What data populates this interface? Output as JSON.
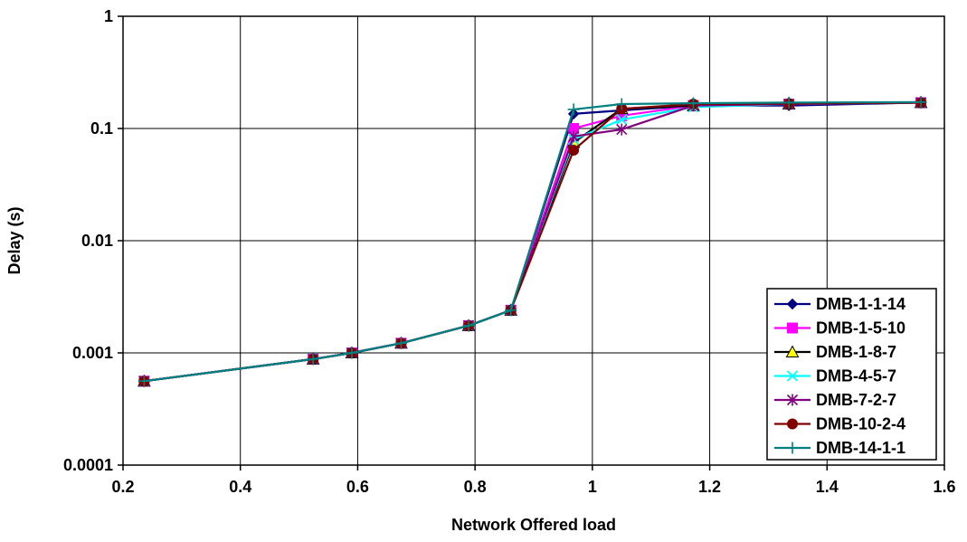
{
  "chart_data": {
    "type": "line",
    "xlabel": "Network Offered load",
    "ylabel": "Delay (s)",
    "xlim": [
      0.2,
      1.6
    ],
    "ylim": [
      0.0001,
      1
    ],
    "yscale": "log",
    "grid": true,
    "legend_position": "bottom-right",
    "x_ticks": [
      "0.2",
      "0.4",
      "0.6",
      "0.8",
      "1",
      "1.2",
      "1.4",
      "1.6"
    ],
    "y_ticks": [
      "0.0001",
      "0.001",
      "0.01",
      "0.1",
      "1"
    ],
    "x": [
      0.236,
      0.524,
      0.59,
      0.674,
      0.789,
      0.861,
      0.968,
      1.05,
      1.172,
      1.335,
      1.56
    ],
    "series": [
      {
        "name": "DMB-1-1-14",
        "color": "#000080",
        "marker": "diamond",
        "values": [
          0.00056,
          0.00088,
          0.001,
          0.00122,
          0.00175,
          0.0024,
          0.135,
          0.145,
          0.16,
          0.16,
          0.17
        ]
      },
      {
        "name": "DMB-1-5-10",
        "color": "#ff00ff",
        "marker": "square",
        "values": [
          0.00056,
          0.00088,
          0.001,
          0.00122,
          0.00175,
          0.0024,
          0.1,
          0.13,
          0.16,
          0.165,
          0.17
        ]
      },
      {
        "name": "DMB-1-8-7",
        "color": "#000000",
        "marker": "triangle",
        "values": [
          0.00056,
          0.00088,
          0.001,
          0.00122,
          0.00175,
          0.0024,
          0.075,
          0.15,
          0.16,
          0.165,
          0.17
        ]
      },
      {
        "name": "DMB-4-5-7",
        "color": "#00ffff",
        "marker": "x",
        "values": [
          0.00056,
          0.00088,
          0.001,
          0.00122,
          0.00175,
          0.0024,
          0.08,
          0.12,
          0.155,
          0.165,
          0.17
        ]
      },
      {
        "name": "DMB-7-2-7",
        "color": "#800080",
        "marker": "star",
        "values": [
          0.00056,
          0.00088,
          0.001,
          0.00122,
          0.00175,
          0.0024,
          0.085,
          0.098,
          0.16,
          0.165,
          0.17
        ]
      },
      {
        "name": "DMB-10-2-4",
        "color": "#800000",
        "marker": "circle",
        "values": [
          0.00056,
          0.00088,
          0.001,
          0.00122,
          0.00175,
          0.0024,
          0.064,
          0.15,
          0.165,
          0.167,
          0.17
        ]
      },
      {
        "name": "DMB-14-1-1",
        "color": "#008080",
        "marker": "plus",
        "values": [
          0.00056,
          0.00088,
          0.001,
          0.00122,
          0.00175,
          0.0024,
          0.148,
          0.165,
          0.168,
          0.17,
          0.172
        ]
      }
    ]
  }
}
